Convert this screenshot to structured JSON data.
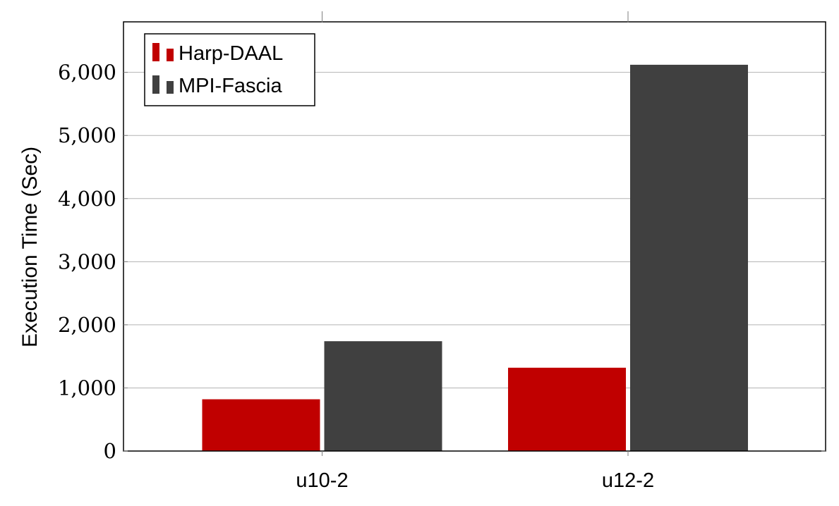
{
  "chart_data": {
    "type": "bar",
    "title": "",
    "xlabel": "",
    "ylabel": "Execution Time (Sec)",
    "categories": [
      "u10-2",
      "u12-2"
    ],
    "series": [
      {
        "name": "Harp-DAAL",
        "color": "#c00000",
        "values": [
          820,
          1320
        ]
      },
      {
        "name": "MPI-Fascia",
        "color": "#404040",
        "values": [
          1740,
          6120
        ]
      }
    ],
    "ylim": [
      0,
      6800
    ],
    "yticks": [
      0,
      1000,
      2000,
      3000,
      4000,
      5000,
      6000
    ],
    "ytick_labels": [
      "0",
      "1,000",
      "2,000",
      "3,000",
      "4,000",
      "5,000",
      "6,000"
    ],
    "grid": "horizontal",
    "legend_position": "top-left"
  }
}
